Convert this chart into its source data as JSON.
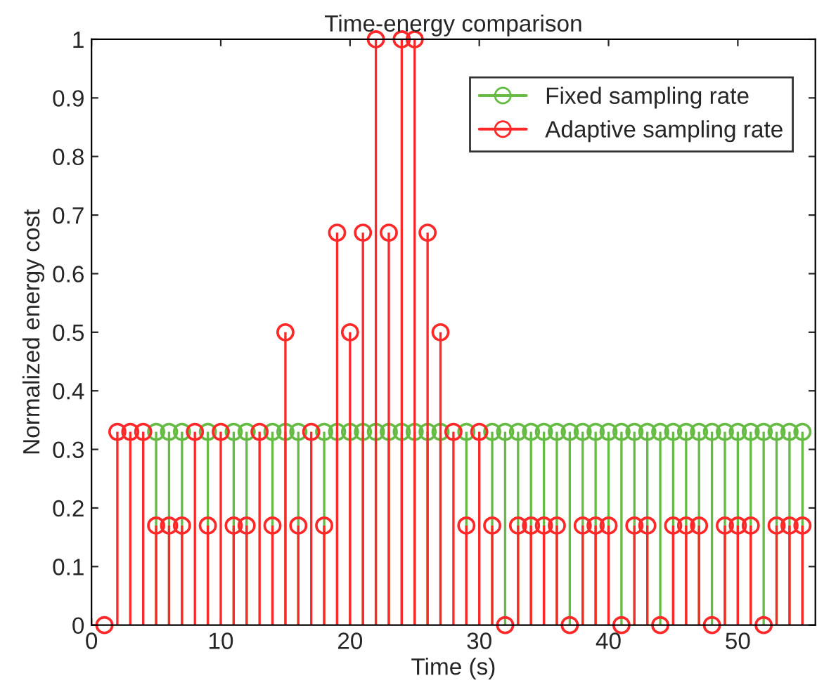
{
  "chart_data": {
    "type": "lollipop",
    "title": "Time-energy comparison",
    "xlabel": "Time (s)",
    "ylabel": "Normalized energy cost",
    "x": [
      1,
      2,
      3,
      4,
      5,
      6,
      7,
      8,
      9,
      10,
      11,
      12,
      13,
      14,
      15,
      16,
      17,
      18,
      19,
      20,
      21,
      22,
      23,
      24,
      25,
      26,
      27,
      28,
      29,
      30,
      31,
      32,
      33,
      34,
      35,
      36,
      37,
      38,
      39,
      40,
      41,
      42,
      43,
      44,
      45,
      46,
      47,
      48,
      49,
      50,
      51,
      52,
      53,
      54,
      55
    ],
    "series": [
      {
        "name": "Fixed sampling rate",
        "color": "#66bb44",
        "values": [
          null,
          null,
          null,
          null,
          0.33,
          0.33,
          0.33,
          null,
          0.33,
          null,
          0.33,
          0.33,
          null,
          0.33,
          0.33,
          0.33,
          null,
          0.33,
          0.33,
          0.33,
          0.33,
          0.33,
          0.33,
          0.33,
          0.33,
          0.33,
          0.33,
          null,
          0.33,
          null,
          0.33,
          0.33,
          0.33,
          0.33,
          0.33,
          0.33,
          0.33,
          0.33,
          0.33,
          0.33,
          0.33,
          0.33,
          0.33,
          0.33,
          0.33,
          0.33,
          0.33,
          0.33,
          0.33,
          0.33,
          0.33,
          0.33,
          0.33,
          0.33,
          0.33
        ]
      },
      {
        "name": "Adaptive sampling rate",
        "color": "#ff2828",
        "values": [
          0,
          0.33,
          0.33,
          0.33,
          0.17,
          0.17,
          0.17,
          0.33,
          0.17,
          0.33,
          0.17,
          0.17,
          0.33,
          0.17,
          0.5,
          0.17,
          0.33,
          0.17,
          0.67,
          0.5,
          0.67,
          1,
          0.67,
          1,
          1,
          0.67,
          0.5,
          0.33,
          0.17,
          0.33,
          0.17,
          0,
          0.17,
          0.17,
          0.17,
          0.17,
          0,
          0.17,
          0.17,
          0.17,
          0,
          0.17,
          0.17,
          0,
          0.17,
          0.17,
          0.17,
          0,
          0.17,
          0.17,
          0.17,
          0,
          0.17,
          0.17,
          0.17
        ]
      }
    ],
    "xlim": [
      0,
      56
    ],
    "xticks": [
      0,
      10,
      20,
      30,
      40,
      50
    ],
    "ylim": [
      0,
      1
    ],
    "yticks": [
      0,
      0.1,
      0.2,
      0.3,
      0.4,
      0.5,
      0.6,
      0.7,
      0.8,
      0.9,
      1
    ],
    "marker": "circle",
    "legend": "top right",
    "grid": false
  }
}
